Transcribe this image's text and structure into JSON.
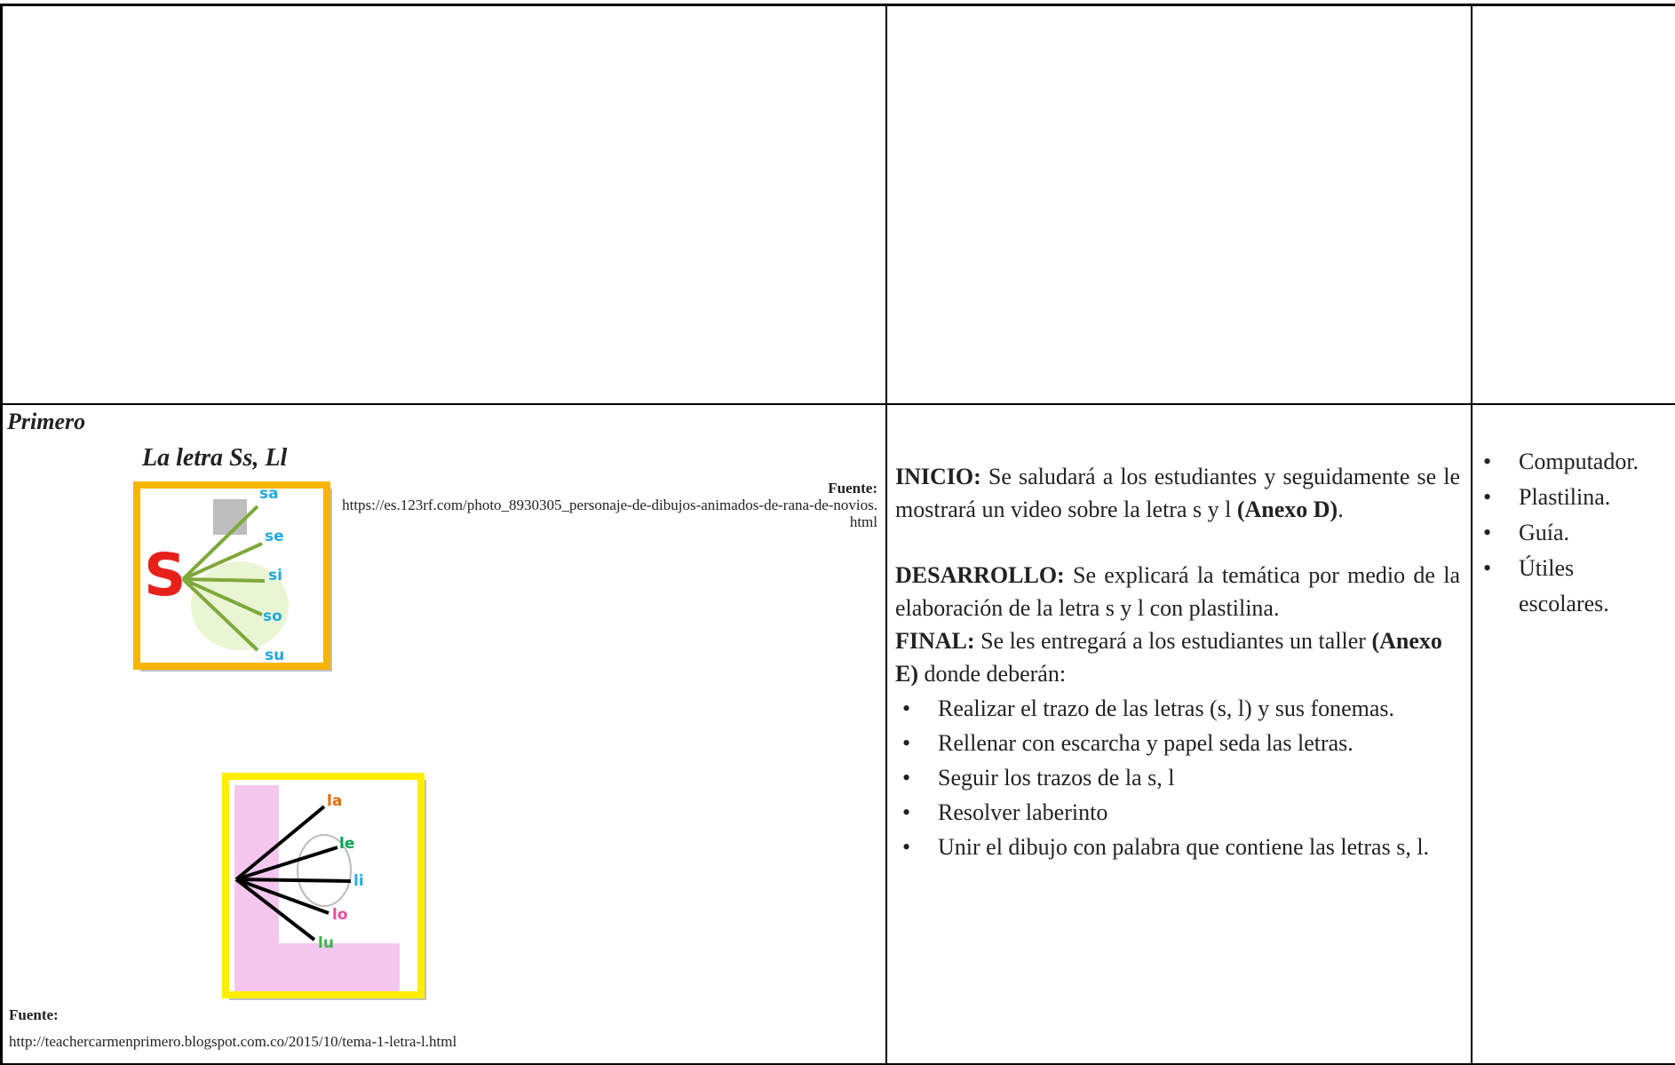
{
  "table": {
    "cell_1": {
      "title": "Primero",
      "subtitle": "La letra Ss, Ll",
      "image_1": {
        "letter": "S",
        "syllables": [
          "sa",
          "se",
          "si",
          "so",
          "su"
        ]
      },
      "source_1": {
        "label": "Fuente:",
        "url": "https://es.123rf.com/photo_8930305_personaje-de-dibujos-animados-de-rana-de-novios.html"
      },
      "image_2": {
        "syllables": [
          "la",
          "le",
          "li",
          "lo",
          "lu"
        ]
      },
      "source_2": {
        "label": "Fuente:",
        "url": "http://teachercarmenprimero.blogspot.com.co/2015/10/tema-1-letra-l.html"
      }
    },
    "cell_2": {
      "inicio": {
        "label": "INICIO:",
        "text": "Se saludará a los estudiantes y seguidamente se le mostrará un video sobre la letra s y l",
        "annex": "(Anexo D)",
        "end": "."
      },
      "desarrollo": {
        "label": "DESARROLLO:",
        "text": "Se explicará la temática por medio de la elaboración de la letra s y l con plastilina."
      },
      "final": {
        "label": "FINAL:",
        "text": "Se les entregará a los estudiantes un taller",
        "annex": "(Anexo E)",
        "end": "donde deberán:"
      },
      "tasks": [
        "Realizar el trazo de las letras (s, l) y sus fonemas.",
        "Rellenar con  escarcha y papel seda las letras.",
        "Seguir los trazos de la s, l",
        "Resolver laberinto",
        "Unir el dibujo con palabra que contiene las letras s, l."
      ]
    },
    "cell_3": {
      "materials": [
        "Computador.",
        "Plastilina.",
        "Guía.",
        "Útiles escolares."
      ]
    }
  }
}
